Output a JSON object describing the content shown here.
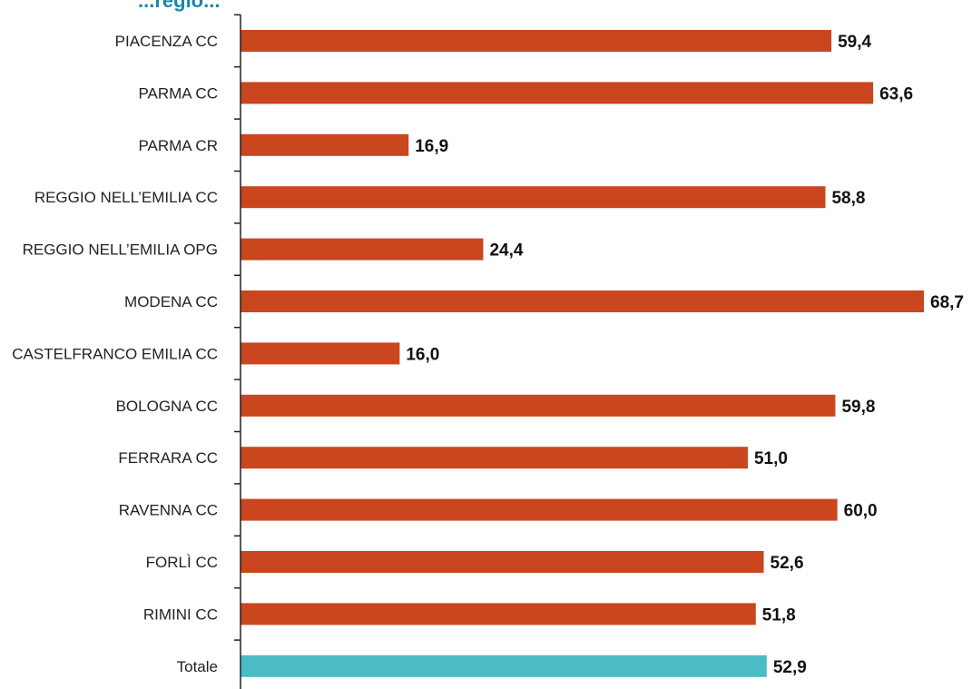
{
  "title_fragment": "...regio...",
  "colors": {
    "bar": "#c9461e",
    "total_bar": "#4bbcc4",
    "axis": "#222222",
    "title": "#1a86a8"
  },
  "chart_data": {
    "type": "bar",
    "orientation": "horizontal",
    "categories": [
      "PIACENZA CC",
      "PARMA CC",
      "PARMA CR",
      "REGGIO NELL’EMILIA CC",
      "REGGIO NELL’EMILIA OPG",
      "MODENA CC",
      "CASTELFRANCO EMILIA CC",
      "BOLOGNA CC",
      "FERRARA CC",
      "RAVENNA CC",
      "FORLÌ CC",
      "RIMINI CC",
      "Totale"
    ],
    "values": [
      59.4,
      63.6,
      16.9,
      58.8,
      24.4,
      68.7,
      16.0,
      59.8,
      51.0,
      60.0,
      52.6,
      51.8,
      52.9
    ],
    "value_labels": [
      "59,4",
      "63,6",
      "16,9",
      "58,8",
      "24,4",
      "68,7",
      "16,0",
      "59,8",
      "51,0",
      "60,0",
      "52,6",
      "51,8",
      "52,9"
    ],
    "highlight_category": "Totale",
    "title": "",
    "xlabel": "",
    "ylabel": "",
    "xlim": [
      0,
      68.7
    ],
    "grid": false,
    "legend": "none"
  }
}
